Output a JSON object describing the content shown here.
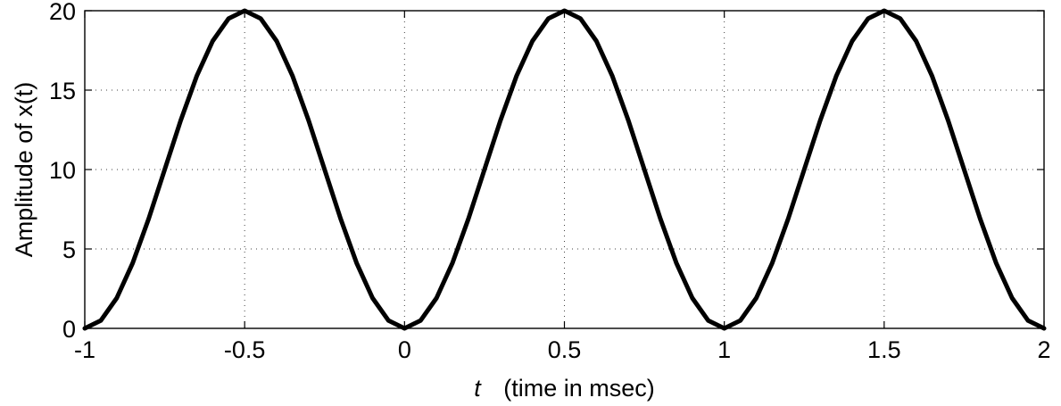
{
  "chart_data": {
    "type": "line",
    "title": "",
    "xlabel_italic": "t",
    "xlabel_rest": "(time in msec)",
    "ylabel": "Amplitude of x(t)",
    "xlim": [
      -1,
      2
    ],
    "ylim": [
      0,
      20
    ],
    "xticks": [
      -1,
      -0.5,
      0,
      0.5,
      1,
      1.5,
      2
    ],
    "xtick_labels": [
      "-1",
      "-0.5",
      "0",
      "0.5",
      "1",
      "1.5",
      "2"
    ],
    "yticks": [
      0,
      5,
      10,
      15,
      20
    ],
    "ytick_labels": [
      "0",
      "5",
      "10",
      "15",
      "20"
    ],
    "grid": true,
    "series": [
      {
        "color": "#000000",
        "x": [
          -1,
          -0.95,
          -0.9,
          -0.85,
          -0.8,
          -0.75,
          -0.7,
          -0.65,
          -0.6,
          -0.55,
          -0.5,
          -0.45,
          -0.4,
          -0.35,
          -0.3,
          -0.25,
          -0.2,
          -0.15,
          -0.1,
          -0.05,
          0,
          0.05,
          0.1,
          0.15,
          0.2,
          0.25,
          0.3,
          0.35,
          0.4,
          0.45,
          0.5,
          0.55,
          0.6,
          0.65,
          0.7,
          0.75,
          0.8,
          0.85,
          0.9,
          0.95,
          1,
          1.05,
          1.1,
          1.15,
          1.2,
          1.25,
          1.3,
          1.35,
          1.4,
          1.45,
          1.5,
          1.55,
          1.6,
          1.65,
          1.7,
          1.75,
          1.8,
          1.85,
          1.9,
          1.95,
          2
        ],
        "y": [
          0,
          0.49,
          1.91,
          4.12,
          6.91,
          10.0,
          13.09,
          15.88,
          18.09,
          19.51,
          20,
          19.51,
          18.09,
          15.88,
          13.09,
          10.0,
          6.91,
          4.12,
          1.91,
          0.49,
          0,
          0.49,
          1.91,
          4.12,
          6.91,
          10.0,
          13.09,
          15.88,
          18.09,
          19.51,
          20,
          19.51,
          18.09,
          15.88,
          13.09,
          10.0,
          6.91,
          4.12,
          1.91,
          0.49,
          0,
          0.49,
          1.91,
          4.12,
          6.91,
          10.0,
          13.09,
          15.88,
          18.09,
          19.51,
          20,
          19.51,
          18.09,
          15.88,
          13.09,
          10.0,
          6.91,
          4.12,
          1.91,
          0.49,
          0
        ]
      }
    ]
  }
}
